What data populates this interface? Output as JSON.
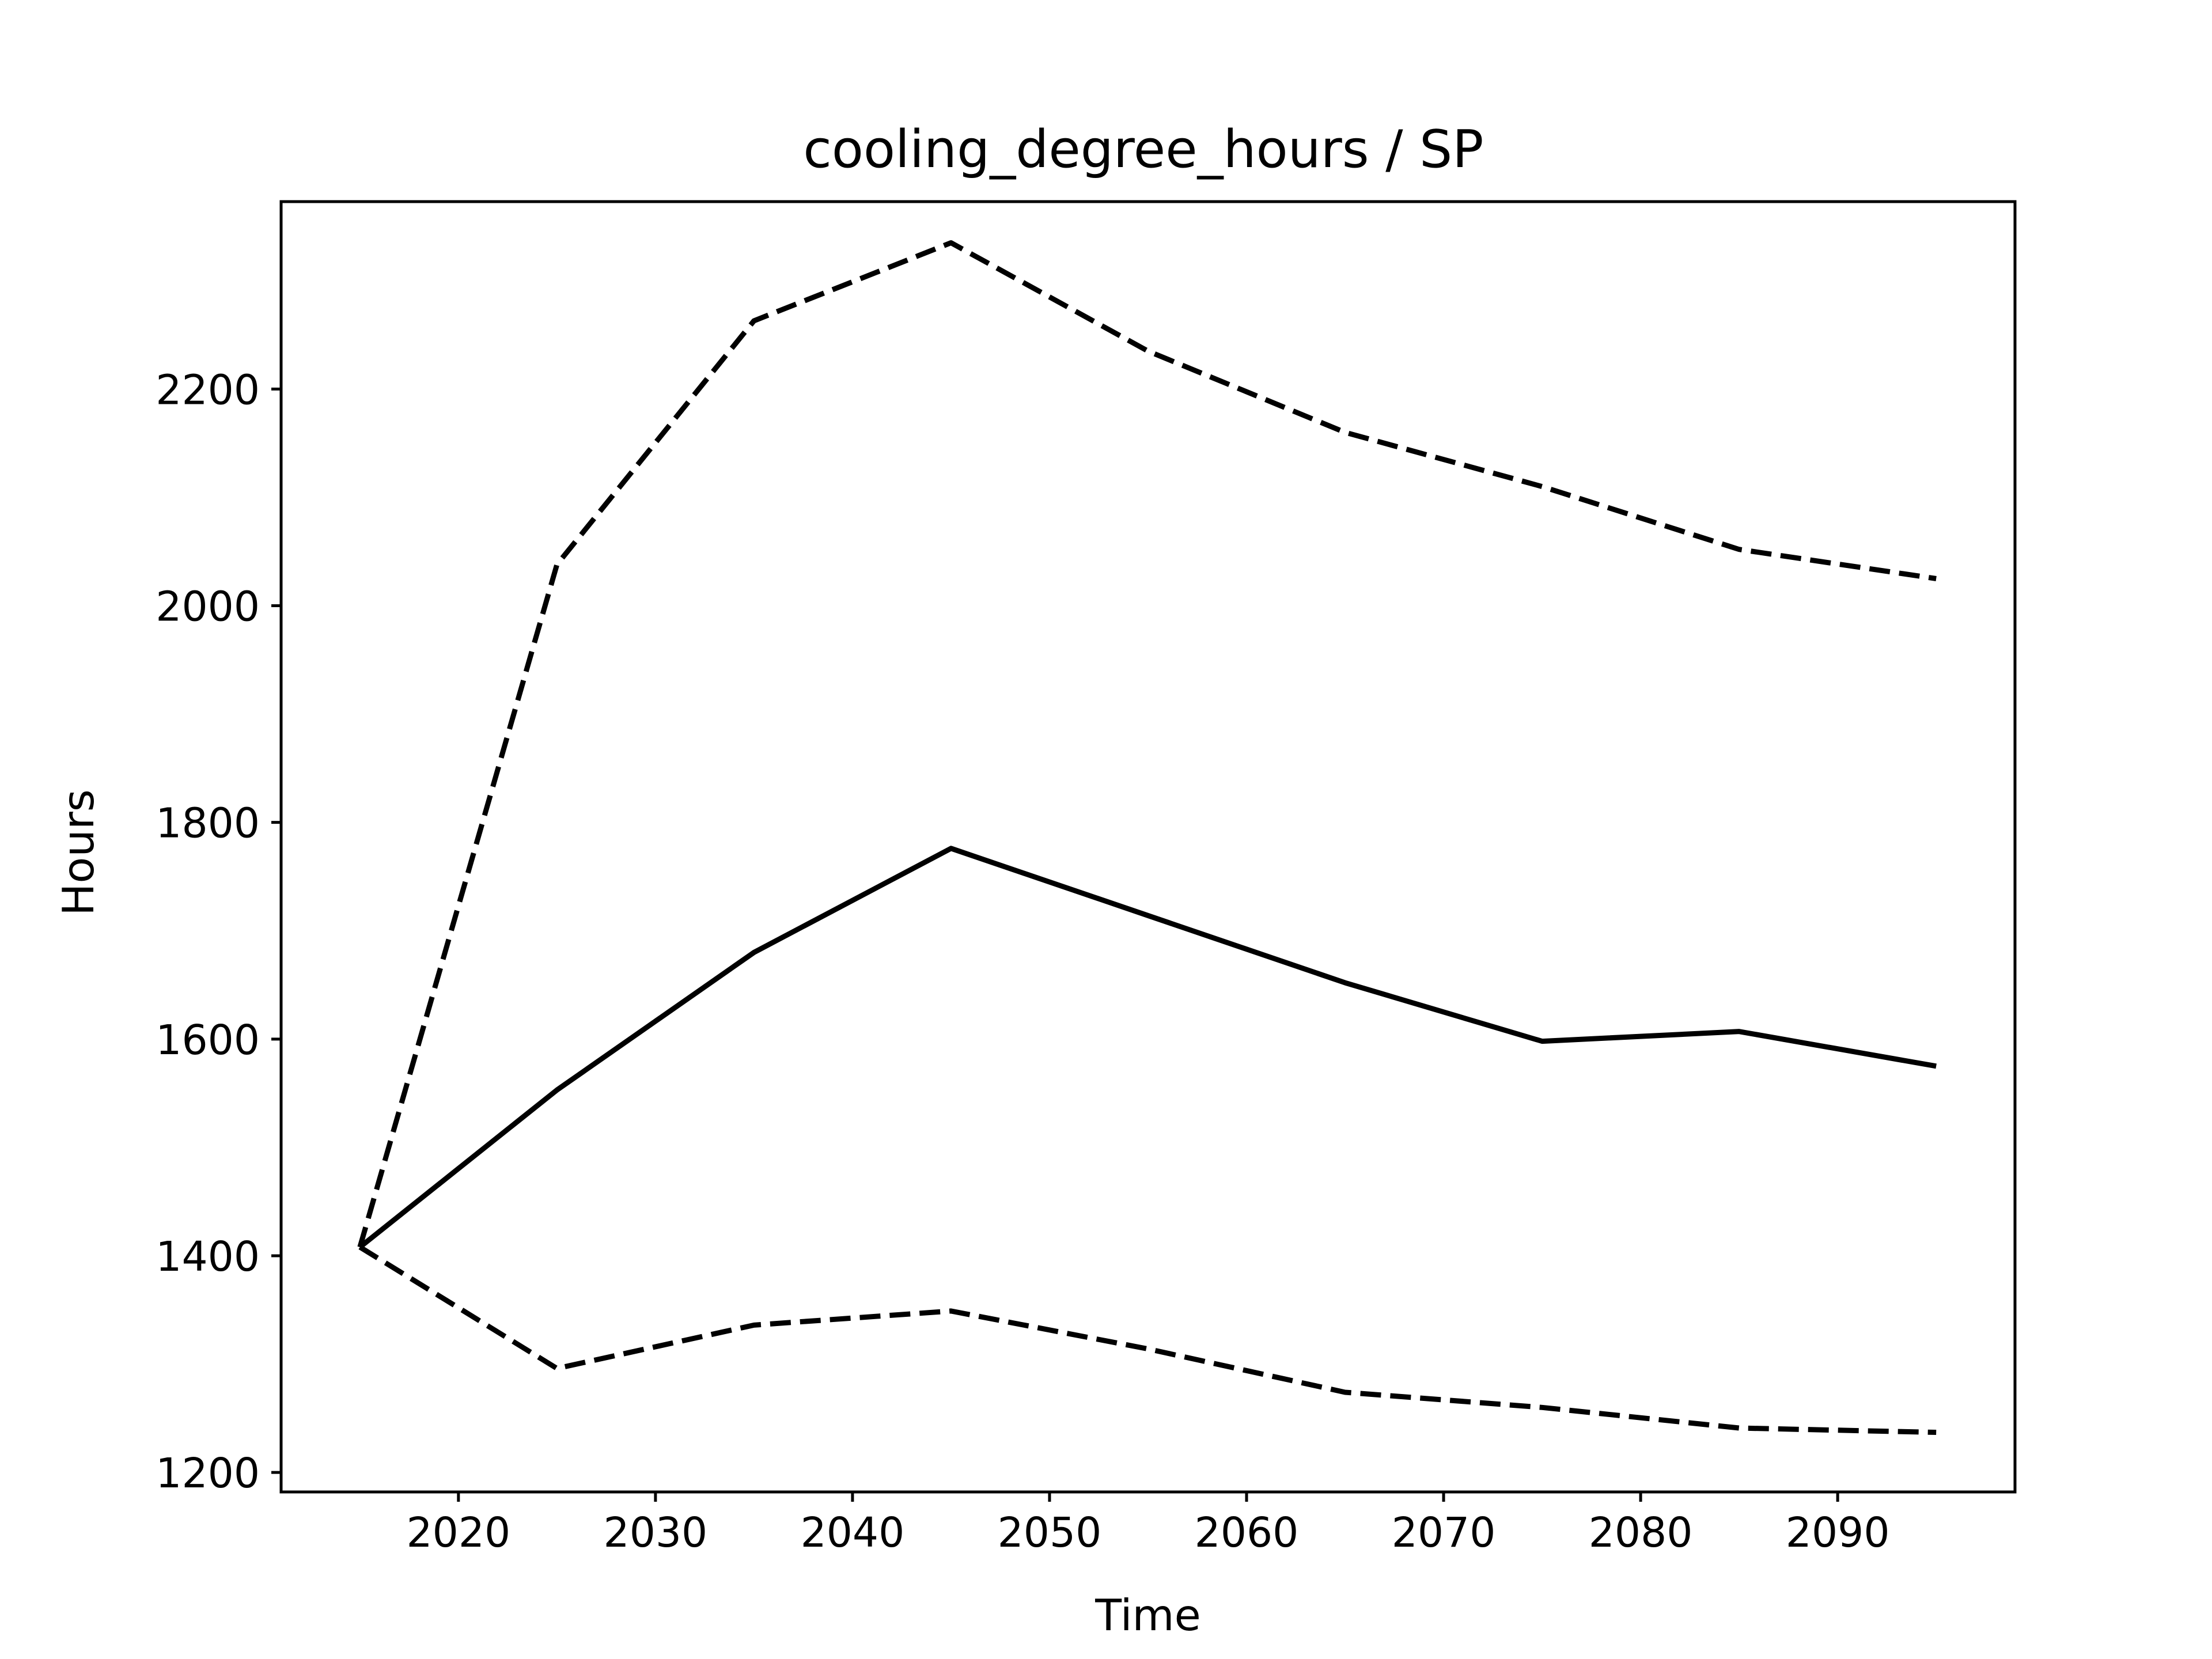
{
  "chart_data": {
    "type": "line",
    "title": "cooling_degree_hours / SP",
    "xlabel": "Time",
    "ylabel": "Hours",
    "x": [
      2015,
      2025,
      2035,
      2045,
      2055,
      2065,
      2075,
      2085,
      2095
    ],
    "xlim": [
      2011,
      2099
    ],
    "ylim": [
      1182,
      2373
    ],
    "xticks": [
      2020,
      2030,
      2040,
      2050,
      2060,
      2070,
      2080,
      2090
    ],
    "yticks": [
      1200,
      1400,
      1600,
      1800,
      2000,
      2200
    ],
    "grid": false,
    "series": [
      {
        "values": [
          1408,
          1553,
          1680,
          1776,
          1714,
          1652,
          1598,
          1607,
          1575
        ],
        "style": "solid",
        "color": "#000000"
      },
      {
        "values": [
          1408,
          2038,
          2263,
          2335,
          2235,
          2160,
          2110,
          2052,
          2025
        ],
        "style": "dashed",
        "color": "#000000"
      },
      {
        "values": [
          1408,
          1296,
          1336,
          1349,
          1314,
          1274,
          1260,
          1241,
          1237
        ],
        "style": "dashed",
        "color": "#000000"
      }
    ]
  }
}
